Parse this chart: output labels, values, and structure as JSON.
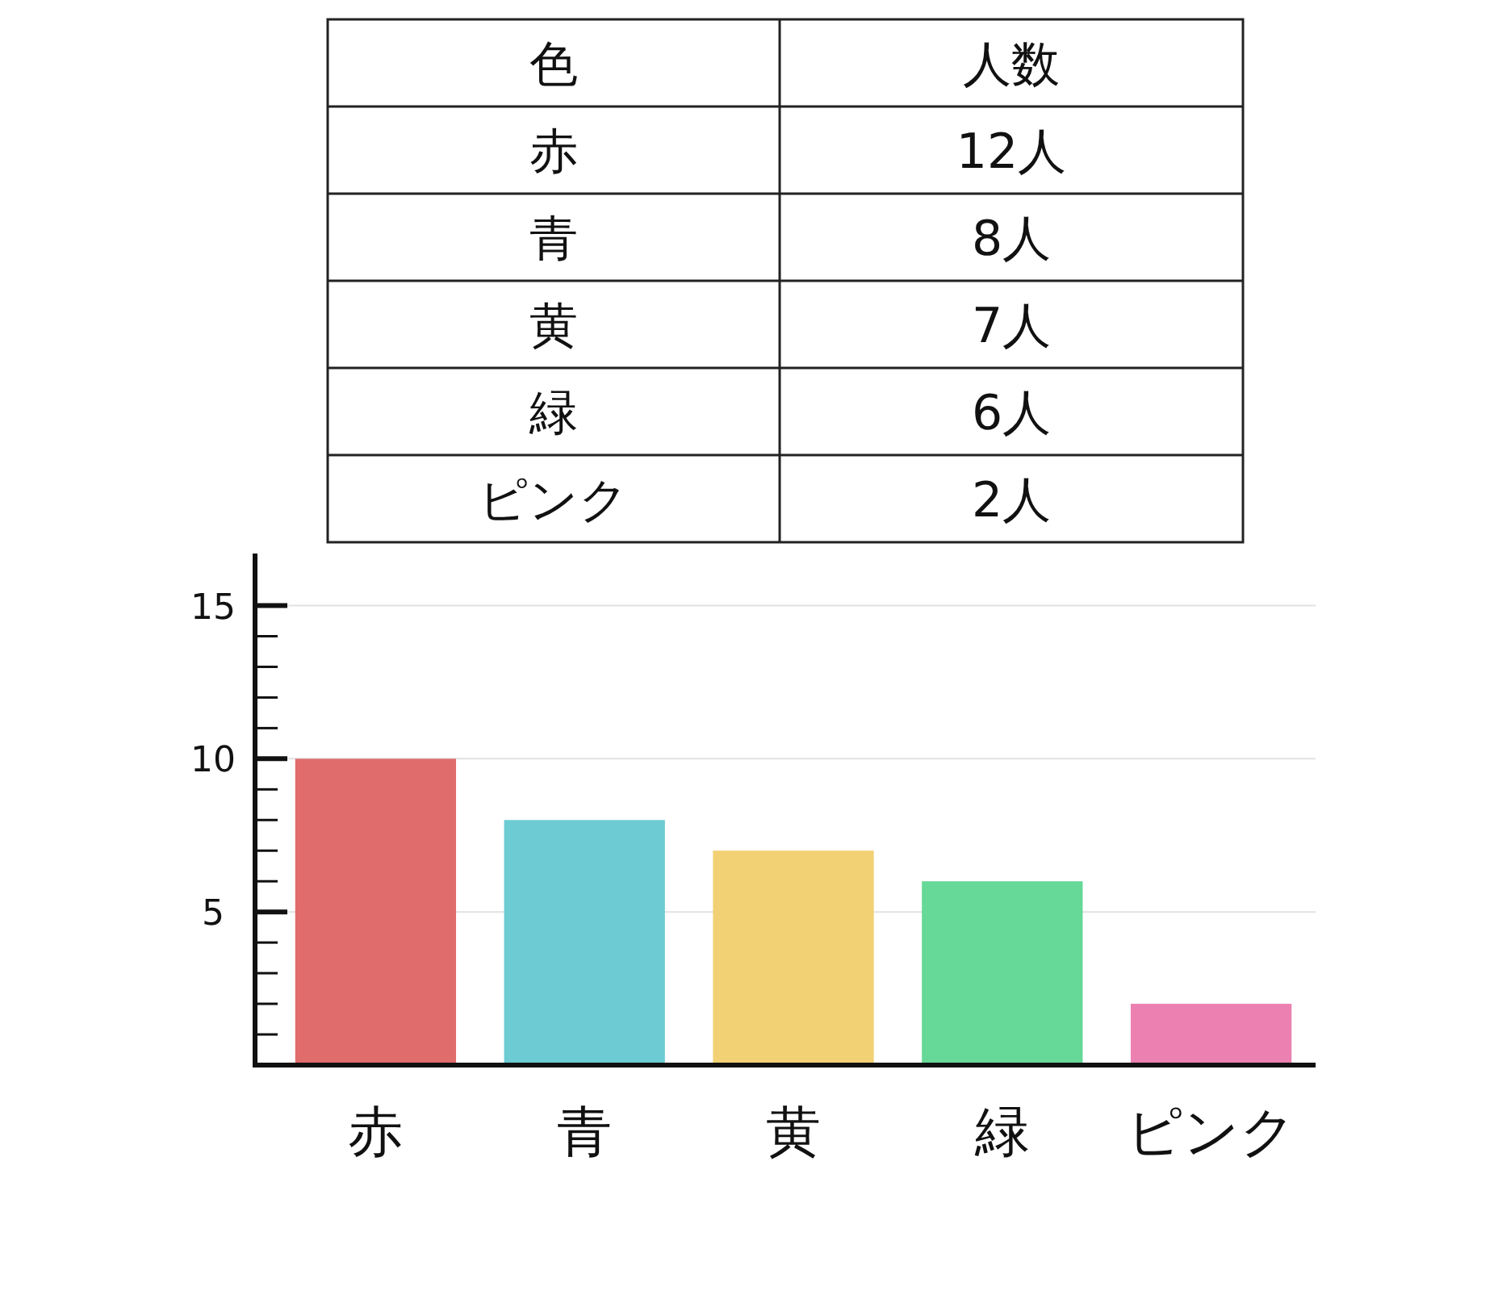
{
  "chart_data": [
    {
      "type": "other",
      "annotations": [
        "色",
        "人数",
        "赤",
        "12人",
        "青",
        "8人",
        "黄",
        "7人",
        "緑",
        "6人",
        "ピンク",
        "2人"
      ]
    },
    {
      "type": "bar",
      "categories": [
        "赤",
        "青",
        "黄",
        "緑",
        "ピンク"
      ],
      "values": [
        10,
        8,
        7,
        6,
        2
      ],
      "colors": [
        "#e06c6c",
        "#6ccbd3",
        "#f2d074",
        "#66d898",
        "#ec80b0"
      ],
      "ylim": [
        0,
        16.7
      ],
      "yticks": [
        {
          "value": 1,
          "label": null
        },
        {
          "value": 2,
          "label": null
        },
        {
          "value": 3,
          "label": null
        },
        {
          "value": 4,
          "label": null
        },
        5,
        {
          "value": 6,
          "label": null
        },
        {
          "value": 7,
          "label": null
        },
        {
          "value": 8,
          "label": null
        },
        {
          "value": 9,
          "label": null
        },
        10,
        {
          "value": 11,
          "label": null
        },
        {
          "value": 12,
          "label": null
        },
        {
          "value": 13,
          "label": null
        },
        {
          "value": 14,
          "label": null
        },
        15
      ],
      "grid": "y"
    }
  ]
}
